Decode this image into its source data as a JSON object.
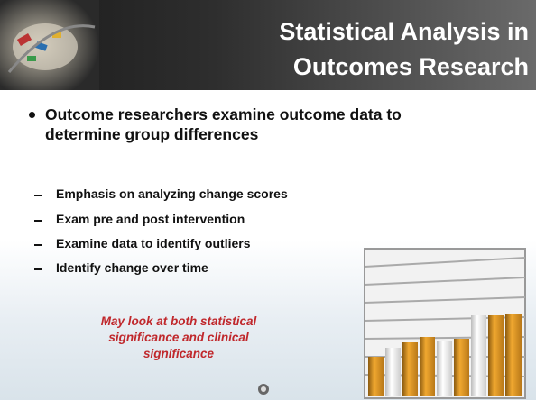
{
  "header": {
    "title_lines": [
      "Statistical Analysis in",
      "Outcomes Research"
    ]
  },
  "bullet": {
    "lines": [
      "Outcome researchers examine outcome data to",
      "determine group differences"
    ]
  },
  "sub_bullets": [
    "Emphasis on analyzing change scores",
    "Exam pre and post intervention",
    "Examine data to identify outliers",
    "Identify change over time"
  ],
  "note": {
    "lines": [
      "May look at both statistical",
      "significance and clinical",
      "significance"
    ]
  }
}
